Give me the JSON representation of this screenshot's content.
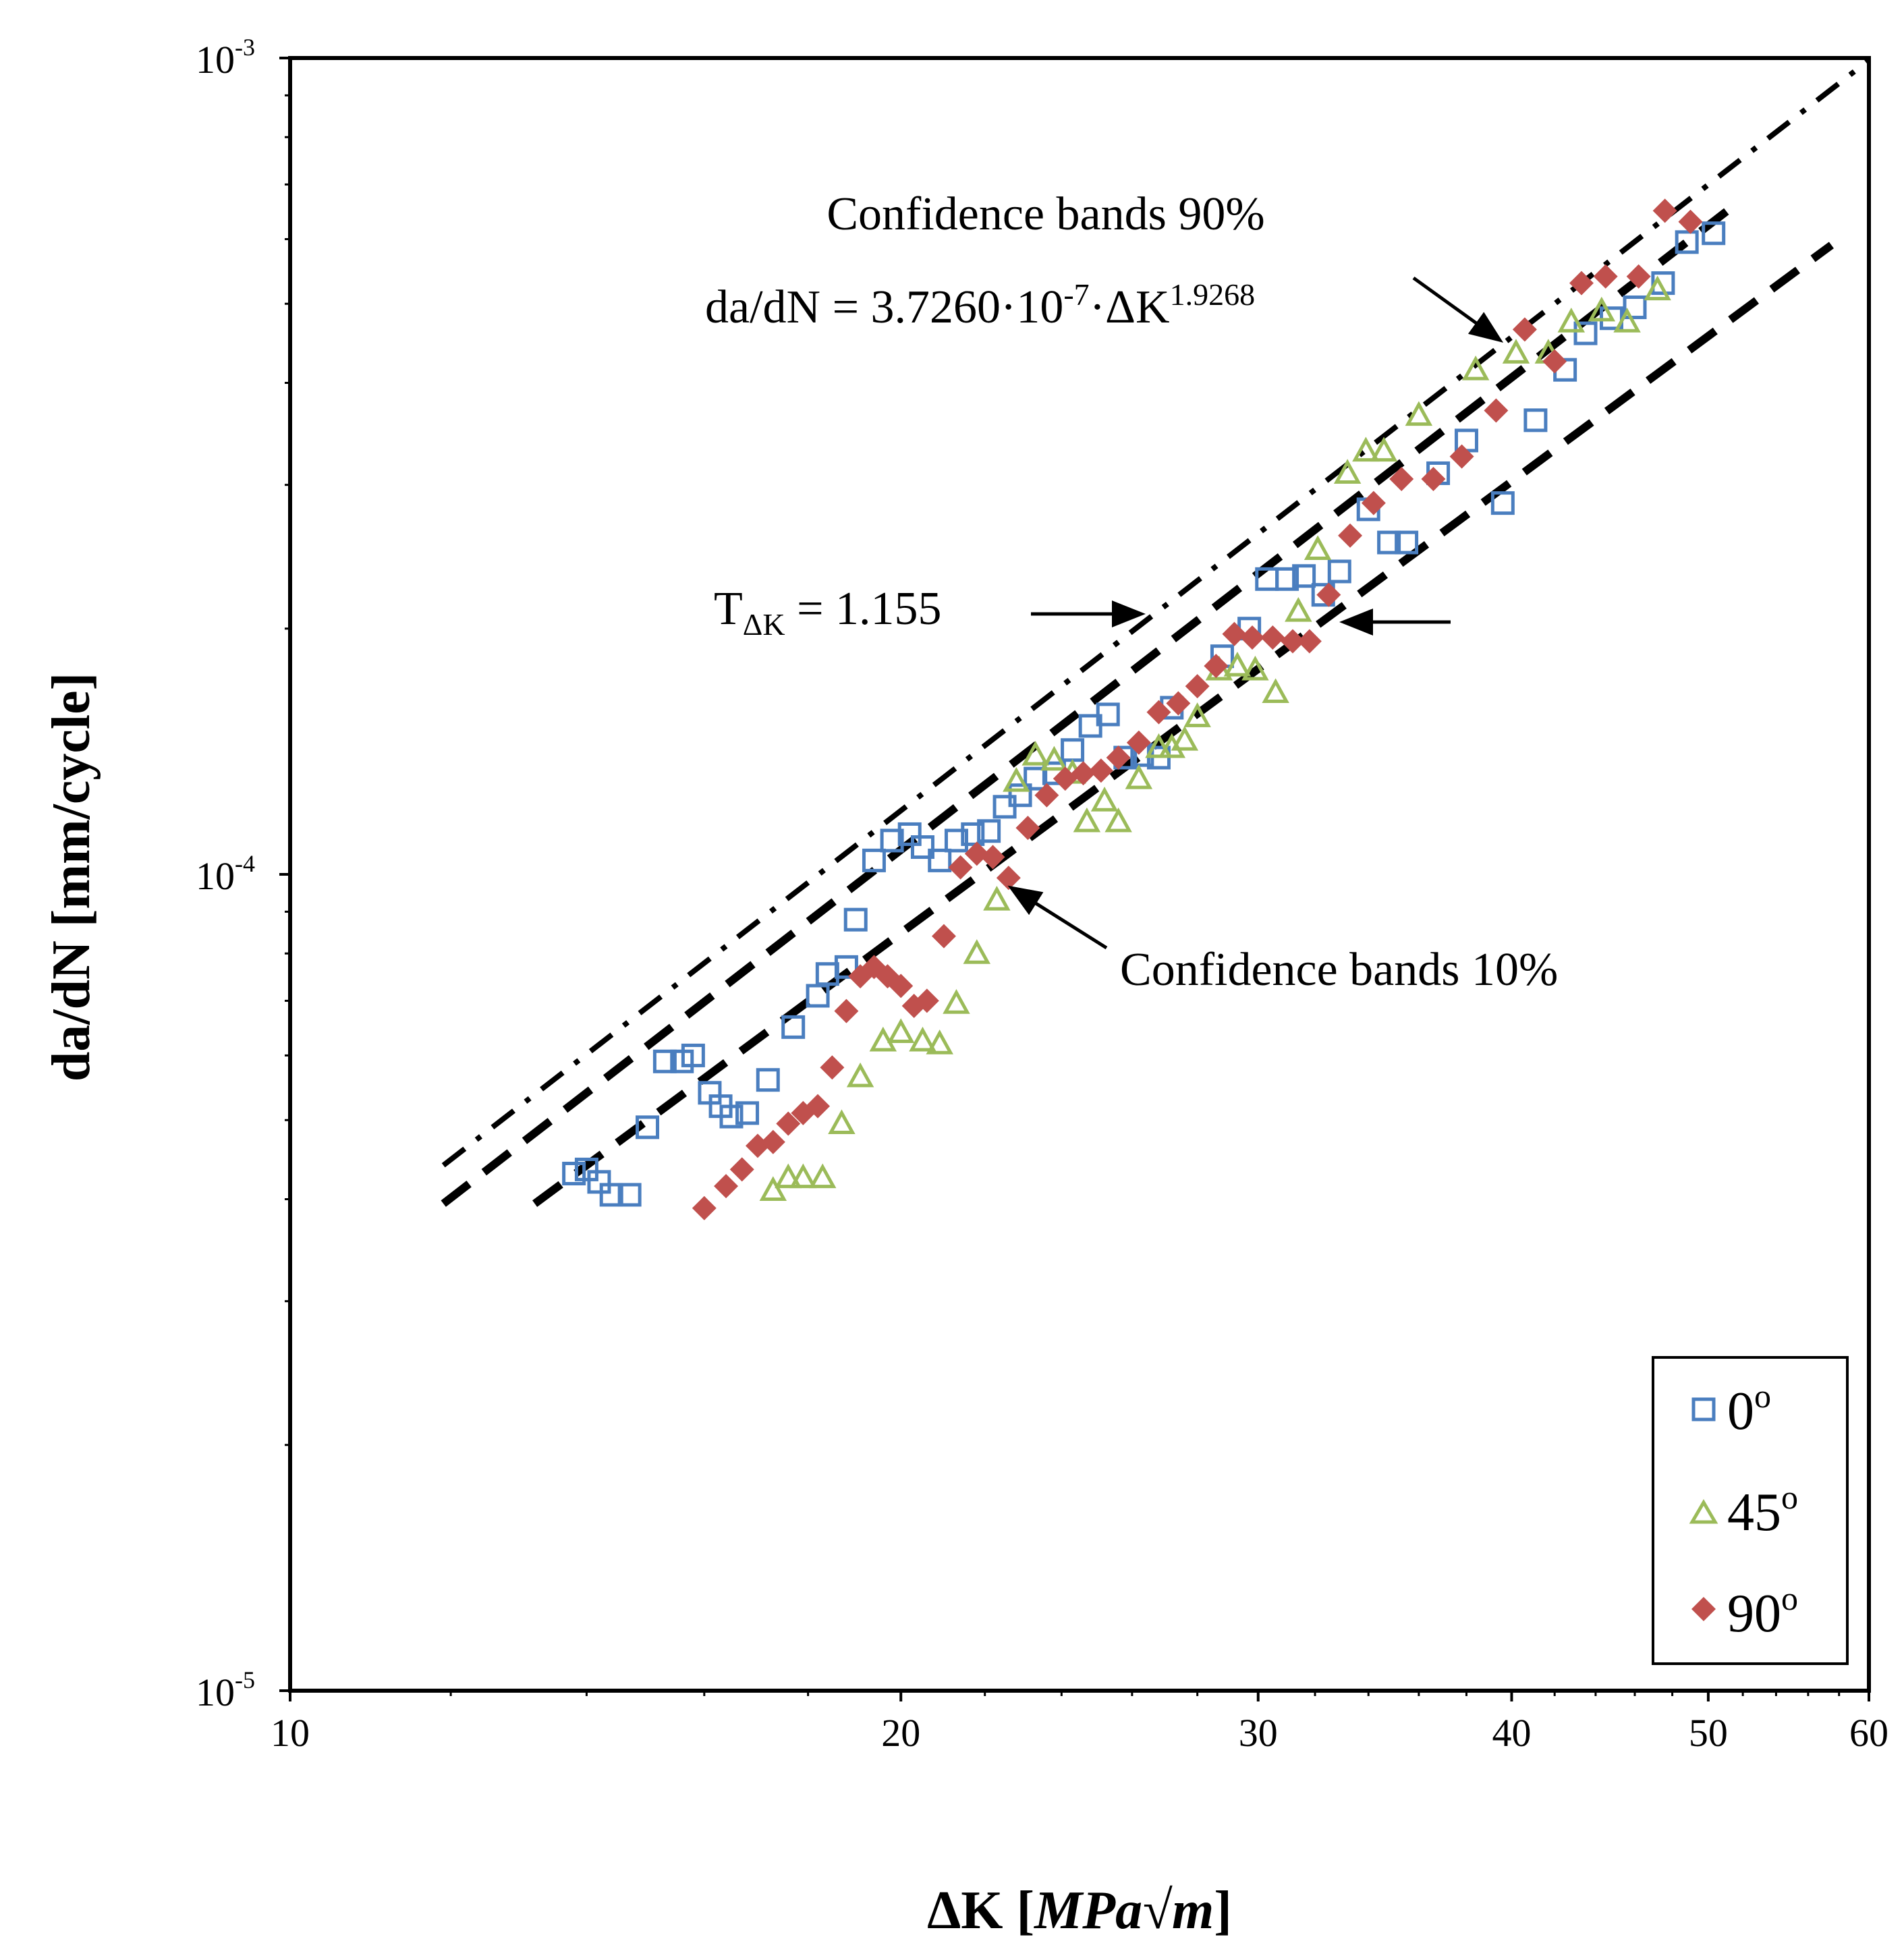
{
  "chart_data": {
    "type": "scatter",
    "xscale": "log",
    "yscale": "log",
    "xlim": [
      10,
      60
    ],
    "ylim": [
      1e-05,
      0.001
    ],
    "x_ticks": [
      {
        "value": 10,
        "label": "10"
      },
      {
        "value": 20,
        "label": "20"
      },
      {
        "value": 30,
        "label": "30"
      },
      {
        "value": 40,
        "label": "40"
      },
      {
        "value": 50,
        "label": "50"
      },
      {
        "value": 60,
        "label": "60"
      }
    ],
    "y_ticks": [
      {
        "value": 0.001,
        "base": "10",
        "exp": "-3"
      },
      {
        "value": 0.0001,
        "base": "10",
        "exp": "-4"
      },
      {
        "value": 1e-05,
        "base": "10",
        "exp": "-5"
      }
    ],
    "xlabel": "ΔK [MPa√m]",
    "xlabel_parts": {
      "main": "ΔK [",
      "unit": "MPa√m",
      "close": "]"
    },
    "ylabel": "da/dN [mm/cycle]",
    "grid": false,
    "legend_position": "bottom-right",
    "series": [
      {
        "name": "0º",
        "name_base": "0",
        "marker": "square-open",
        "color": "#4a7ebf",
        "points": [
          [
            13.8,
            4.3e-05
          ],
          [
            14.0,
            4.35e-05
          ],
          [
            14.2,
            4.2e-05
          ],
          [
            14.4,
            4.05e-05
          ],
          [
            14.7,
            4.05e-05
          ],
          [
            15.0,
            4.9e-05
          ],
          [
            15.3,
            5.9e-05
          ],
          [
            15.6,
            5.9e-05
          ],
          [
            15.8,
            6e-05
          ],
          [
            16.1,
            5.4e-05
          ],
          [
            16.3,
            5.2e-05
          ],
          [
            16.5,
            5.05e-05
          ],
          [
            16.8,
            5.1e-05
          ],
          [
            17.2,
            5.6e-05
          ],
          [
            17.7,
            6.5e-05
          ],
          [
            18.2,
            7.1e-05
          ],
          [
            18.4,
            7.55e-05
          ],
          [
            18.8,
            7.7e-05
          ],
          [
            19.0,
            8.8e-05
          ],
          [
            19.4,
            0.000104
          ],
          [
            19.8,
            0.00011
          ],
          [
            20.2,
            0.000112
          ],
          [
            20.5,
            0.000108
          ],
          [
            20.9,
            0.000104
          ],
          [
            21.3,
            0.00011
          ],
          [
            21.7,
            0.000112
          ],
          [
            22.1,
            0.000113
          ],
          [
            22.5,
            0.000121
          ],
          [
            22.9,
            0.000125
          ],
          [
            23.3,
            0.000131
          ],
          [
            23.8,
            0.000133
          ],
          [
            24.3,
            0.000142
          ],
          [
            24.8,
            0.000152
          ],
          [
            25.3,
            0.000157
          ],
          [
            25.8,
            0.000139
          ],
          [
            26.3,
            0.00014
          ],
          [
            26.8,
            0.000139
          ],
          [
            27.2,
            0.00016
          ],
          [
            28.8,
            0.000185
          ],
          [
            29.7,
            0.0002
          ],
          [
            30.3,
            0.00023
          ],
          [
            31.0,
            0.00023
          ],
          [
            31.6,
            0.000232
          ],
          [
            32.3,
            0.00022
          ],
          [
            32.9,
            0.000235
          ],
          [
            34.0,
            0.00028
          ],
          [
            34.8,
            0.000255
          ],
          [
            35.5,
            0.000255
          ],
          [
            36.8,
            0.00031
          ],
          [
            38.0,
            0.00034
          ],
          [
            39.6,
            0.000285
          ],
          [
            41.1,
            0.00036
          ],
          [
            42.5,
            0.000415
          ],
          [
            43.5,
            0.00046
          ],
          [
            44.8,
            0.00048
          ],
          [
            46.0,
            0.000495
          ],
          [
            47.5,
            0.00053
          ],
          [
            48.8,
            0.000595
          ],
          [
            50.3,
            0.00061
          ]
        ]
      },
      {
        "name": "45º",
        "name_base": "45",
        "marker": "triangle-open",
        "color": "#9bbb59",
        "points": [
          [
            17.3,
            4.1e-05
          ],
          [
            17.6,
            4.25e-05
          ],
          [
            17.9,
            4.25e-05
          ],
          [
            18.3,
            4.25e-05
          ],
          [
            18.7,
            4.95e-05
          ],
          [
            19.1,
            5.65e-05
          ],
          [
            19.6,
            6.25e-05
          ],
          [
            20.0,
            6.4e-05
          ],
          [
            20.5,
            6.25e-05
          ],
          [
            20.9,
            6.2e-05
          ],
          [
            21.3,
            6.95e-05
          ],
          [
            21.8,
            8e-05
          ],
          [
            22.3,
            9.3e-05
          ],
          [
            22.8,
            0.00013
          ],
          [
            23.3,
            0.00014
          ],
          [
            23.8,
            0.000138
          ],
          [
            24.3,
            0.000133
          ],
          [
            24.7,
            0.000116
          ],
          [
            25.2,
            0.000123
          ],
          [
            25.6,
            0.000116
          ],
          [
            26.2,
            0.000131
          ],
          [
            26.8,
            0.000143
          ],
          [
            27.2,
            0.000143
          ],
          [
            27.6,
            0.000146
          ],
          [
            28.0,
            0.000156
          ],
          [
            28.7,
            0.000178
          ],
          [
            29.3,
            0.00018
          ],
          [
            29.9,
            0.000178
          ],
          [
            30.6,
            0.000167
          ],
          [
            31.4,
            0.00021
          ],
          [
            32.1,
            0.00025
          ],
          [
            33.2,
            0.00031
          ],
          [
            33.9,
            0.00033
          ],
          [
            34.6,
            0.00033
          ],
          [
            36.0,
            0.000365
          ],
          [
            38.4,
            0.000415
          ],
          [
            40.2,
            0.000435
          ],
          [
            41.7,
            0.000435
          ],
          [
            42.8,
            0.000475
          ],
          [
            44.3,
            0.00049
          ],
          [
            45.6,
            0.000475
          ],
          [
            47.2,
            0.00052
          ]
        ]
      },
      {
        "name": "90º",
        "name_base": "90",
        "marker": "diamond-filled",
        "color": "#c0504d",
        "points": [
          [
            16.0,
            3.9e-05
          ],
          [
            16.4,
            4.15e-05
          ],
          [
            16.7,
            4.35e-05
          ],
          [
            17.0,
            4.65e-05
          ],
          [
            17.3,
            4.7e-05
          ],
          [
            17.6,
            4.95e-05
          ],
          [
            17.9,
            5.1e-05
          ],
          [
            18.2,
            5.2e-05
          ],
          [
            18.5,
            5.8e-05
          ],
          [
            18.8,
            6.8e-05
          ],
          [
            19.1,
            7.5e-05
          ],
          [
            19.4,
            7.7e-05
          ],
          [
            19.7,
            7.5e-05
          ],
          [
            20.0,
            7.3e-05
          ],
          [
            20.3,
            6.9e-05
          ],
          [
            20.6,
            7e-05
          ],
          [
            21.0,
            8.4e-05
          ],
          [
            21.4,
            0.000102
          ],
          [
            21.8,
            0.000106
          ],
          [
            22.2,
            0.000105
          ],
          [
            22.6,
            9.9e-05
          ],
          [
            23.1,
            0.000114
          ],
          [
            23.6,
            0.000125
          ],
          [
            24.1,
            0.000131
          ],
          [
            24.6,
            0.000133
          ],
          [
            25.1,
            0.000134
          ],
          [
            25.6,
            0.000139
          ],
          [
            26.2,
            0.000145
          ],
          [
            26.8,
            0.000158
          ],
          [
            27.4,
            0.000162
          ],
          [
            28.0,
            0.00017
          ],
          [
            28.6,
            0.00018
          ],
          [
            29.2,
            0.000197
          ],
          [
            29.8,
            0.000195
          ],
          [
            30.5,
            0.000195
          ],
          [
            31.2,
            0.000193
          ],
          [
            31.8,
            0.000193
          ],
          [
            32.5,
            0.00022
          ],
          [
            33.3,
            0.00026
          ],
          [
            34.2,
            0.000285
          ],
          [
            35.3,
            0.000305
          ],
          [
            36.6,
            0.000305
          ],
          [
            37.8,
            0.000325
          ],
          [
            39.3,
            0.00037
          ],
          [
            40.6,
            0.000465
          ],
          [
            42.0,
            0.000425
          ],
          [
            43.3,
            0.00053
          ],
          [
            44.5,
            0.00054
          ],
          [
            46.2,
            0.00054
          ],
          [
            47.6,
            0.00065
          ],
          [
            49.0,
            0.00063
          ]
        ]
      }
    ],
    "fit_line": {
      "style": "dash-dot",
      "equation_prefix": "da/dN = 3.7260·10",
      "equation_exp1": "-7",
      "equation_mid": "·ΔK",
      "equation_exp2": "1.9268",
      "coefficient": 3.726e-07,
      "exponent": 1.9268,
      "x_range": [
        11.9,
        60
      ]
    },
    "confidence_bands": [
      {
        "name": "Confidence bands 90%",
        "style": "dashed",
        "x_range": [
          11.9,
          51.5
        ],
        "y_range": [
          3.95e-05,
          0.00066
        ]
      },
      {
        "name": "Confidence bands 10%",
        "style": "dashed",
        "x_range": [
          13.2,
          57.5
        ],
        "y_range": [
          3.95e-05,
          0.00059
        ]
      }
    ],
    "annotations": {
      "band90_label": "Confidence bands 90%",
      "band10_label": "Confidence bands 10%",
      "t_label_main": "T",
      "t_label_sub": "ΔK",
      "t_label_value": " = 1.155"
    }
  }
}
